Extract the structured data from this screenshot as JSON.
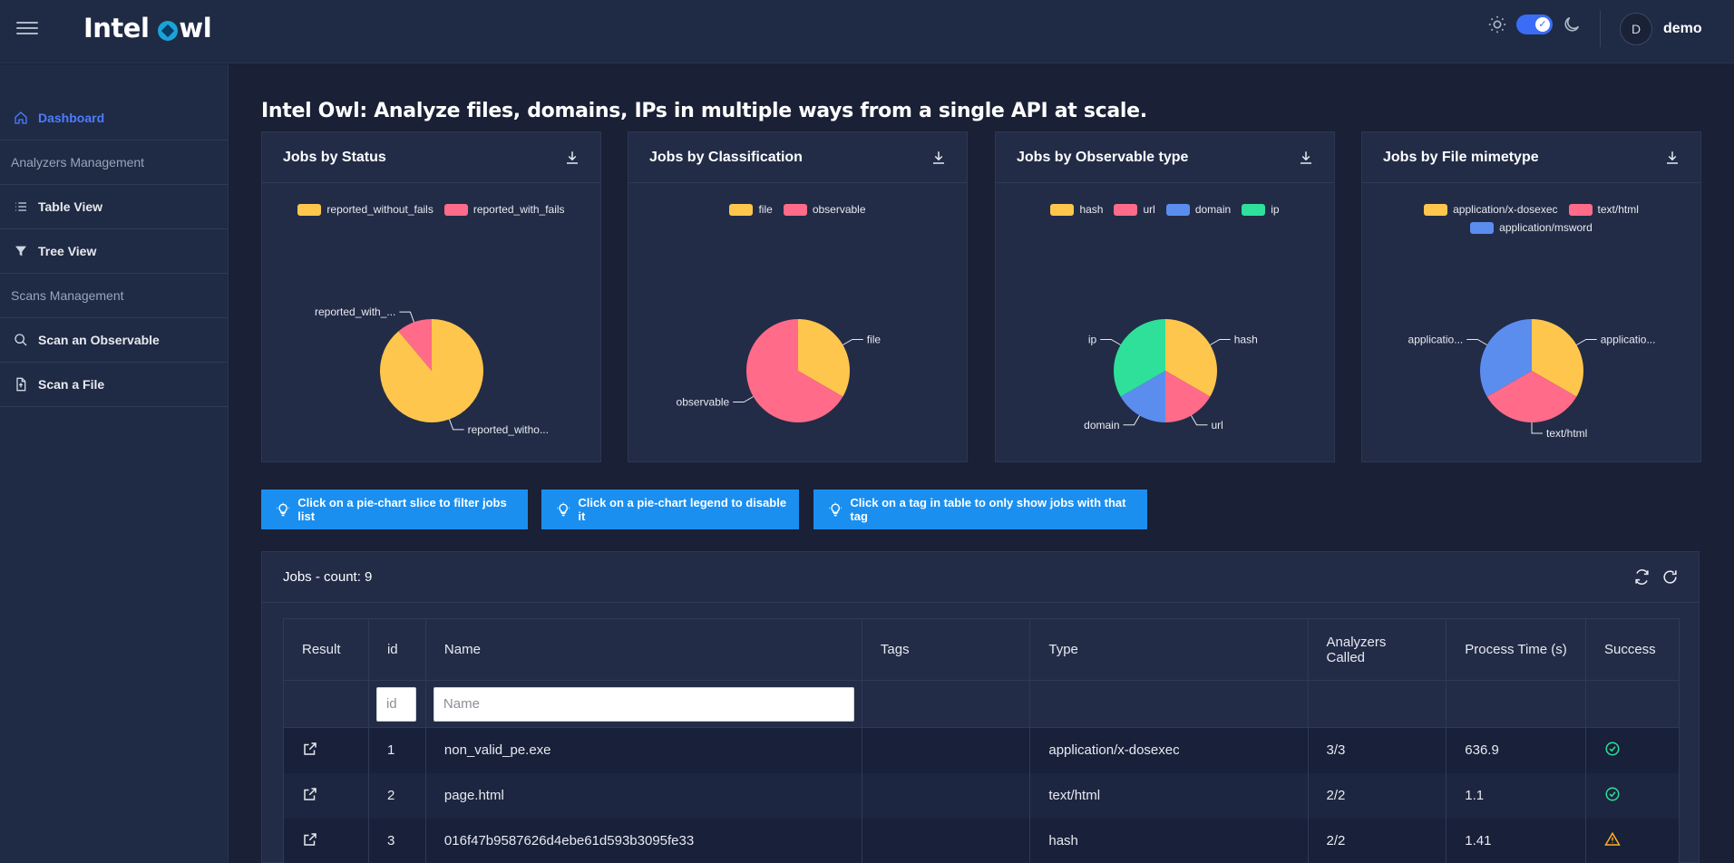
{
  "app": {
    "logo_text_left": "Intel",
    "logo_text_right": "wl",
    "user_initial": "D",
    "user_name": "demo"
  },
  "sidebar": {
    "items": [
      {
        "label": "Dashboard",
        "icon": "home-icon",
        "active": true
      },
      {
        "label": "Analyzers Management",
        "section": true
      },
      {
        "label": "Table View",
        "icon": "list-icon"
      },
      {
        "label": "Tree View",
        "icon": "filter-icon"
      },
      {
        "label": "Scans Management",
        "section": true
      },
      {
        "label": "Scan an Observable",
        "icon": "search-icon"
      },
      {
        "label": "Scan a File",
        "icon": "file-icon"
      }
    ]
  },
  "page": {
    "title": "Intel Owl: Analyze files, domains, IPs in multiple ways from a single API at scale."
  },
  "colors": {
    "yellow": "#ffc64d",
    "pink": "#ff6b88",
    "blue": "#5b8def",
    "green": "#2ee09a",
    "accent": "#1a8ff0"
  },
  "chart_data": [
    {
      "type": "pie",
      "title": "Jobs by Status",
      "legend": [
        "reported_without_fails",
        "reported_with_fails"
      ],
      "values": [
        8,
        1
      ],
      "slice_labels": [
        "reported_witho...",
        "reported_with_..."
      ],
      "colors": [
        "#ffc64d",
        "#ff6b88"
      ]
    },
    {
      "type": "pie",
      "title": "Jobs by Classification",
      "legend": [
        "file",
        "observable"
      ],
      "values": [
        3,
        6
      ],
      "slice_labels": [
        "file",
        "observable"
      ],
      "colors": [
        "#ffc64d",
        "#ff6b88"
      ]
    },
    {
      "type": "pie",
      "title": "Jobs by Observable type",
      "legend": [
        "hash",
        "url",
        "domain",
        "ip"
      ],
      "values": [
        2,
        1,
        1,
        2
      ],
      "slice_labels": [
        "hash",
        "url",
        "domain",
        "ip"
      ],
      "colors": [
        "#ffc64d",
        "#ff6b88",
        "#5b8def",
        "#2ee09a"
      ]
    },
    {
      "type": "pie",
      "title": "Jobs by File mimetype",
      "legend": [
        "application/x-dosexec",
        "text/html",
        "application/msword"
      ],
      "values": [
        1,
        1,
        1
      ],
      "slice_labels": [
        "applicatio...",
        "text/html",
        "applicatio..."
      ],
      "colors": [
        "#ffc64d",
        "#ff6b88",
        "#5b8def"
      ]
    }
  ],
  "tips": [
    "Click on a pie-chart slice to filter jobs list",
    "Click on a pie-chart legend to disable it",
    "Click on a tag in table to only show jobs with that tag"
  ],
  "jobs": {
    "title": "Jobs - count: 9",
    "columns": [
      "Result",
      "id",
      "Name",
      "Tags",
      "Type",
      "Analyzers Called",
      "Process Time (s)",
      "Success"
    ],
    "filters": {
      "id_placeholder": "id",
      "name_placeholder": "Name"
    },
    "rows": [
      {
        "id": "1",
        "name": "non_valid_pe.exe",
        "tags": "",
        "type": "application/x-dosexec",
        "analyzers": "3/3",
        "time": "636.9",
        "success": "check"
      },
      {
        "id": "2",
        "name": "page.html",
        "tags": "",
        "type": "text/html",
        "analyzers": "2/2",
        "time": "1.1",
        "success": "check"
      },
      {
        "id": "3",
        "name": "016f47b9587626d4ebe61d593b3095fe33",
        "tags": "",
        "type": "hash",
        "analyzers": "2/2",
        "time": "1.41",
        "success": "warning"
      }
    ]
  }
}
